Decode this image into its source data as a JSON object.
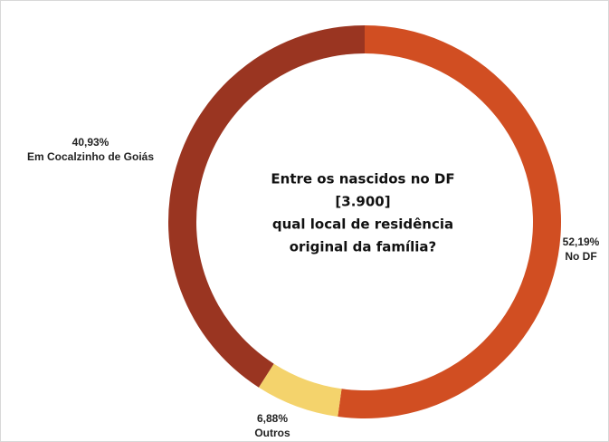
{
  "chart_data": {
    "type": "donut",
    "title": [
      "Entre os nascidos no DF",
      "[3.900]",
      "qual local de residência",
      "original da família?"
    ],
    "categories": [
      "No DF",
      "Outros",
      "Em Cocalzinho de Goiás"
    ],
    "values": [
      52.19,
      6.88,
      40.93
    ],
    "value_labels": [
      "52,19%",
      "6,88%",
      "40,93%"
    ],
    "colors": [
      "#d14e22",
      "#f4d36c",
      "#9a3521"
    ]
  }
}
